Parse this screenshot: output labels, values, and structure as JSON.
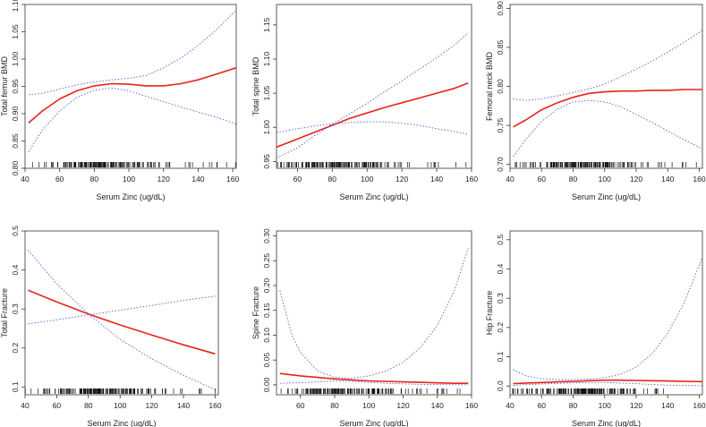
{
  "colors": {
    "fit_line": "#e8231b",
    "ci_band": "#5a5ad8",
    "axis": "#333333",
    "rug": "#111111"
  },
  "icons": [],
  "chart_data": [
    {
      "type": "line",
      "ylabel": "Total femur BMD",
      "xlabel": "Serum Zinc (ug/dL)",
      "xlim": [
        40,
        162
      ],
      "ylim": [
        0.8,
        1.1
      ],
      "xticks": [
        "40",
        "60",
        "80",
        "100",
        "120",
        "140",
        "160"
      ],
      "yticks": [
        "0.80",
        "0.85",
        "0.90",
        "0.95",
        "1.00",
        "1.05",
        "1.10"
      ],
      "x": [
        42,
        50,
        60,
        70,
        80,
        90,
        100,
        110,
        120,
        130,
        140,
        150,
        162
      ],
      "series": [
        {
          "role": "fit",
          "values": [
            0.883,
            0.905,
            0.927,
            0.942,
            0.951,
            0.955,
            0.954,
            0.951,
            0.951,
            0.955,
            0.962,
            0.972,
            0.984
          ]
        },
        {
          "role": "upper",
          "values": [
            0.935,
            0.937,
            0.945,
            0.953,
            0.958,
            0.962,
            0.965,
            0.97,
            0.984,
            1.002,
            1.025,
            1.052,
            1.09
          ]
        },
        {
          "role": "lower",
          "values": [
            0.83,
            0.87,
            0.905,
            0.93,
            0.943,
            0.947,
            0.942,
            0.932,
            0.922,
            0.912,
            0.903,
            0.894,
            0.881
          ]
        }
      ],
      "rug_x_range": [
        40,
        162
      ]
    },
    {
      "type": "line",
      "ylabel": "Total spine BMD",
      "xlabel": "Serum Zinc (ug/dL)",
      "xlim": [
        48,
        160
      ],
      "ylim": [
        0.94,
        1.18
      ],
      "xticks": [
        "60",
        "80",
        "100",
        "120",
        "140",
        "160"
      ],
      "yticks": [
        "0.95",
        "1.00",
        "1.05",
        "1.10",
        "1.15"
      ],
      "x": [
        48,
        60,
        70,
        80,
        90,
        100,
        110,
        120,
        130,
        140,
        150,
        158
      ],
      "series": [
        {
          "role": "fit",
          "values": [
            0.971,
            0.983,
            0.993,
            1.003,
            1.013,
            1.021,
            1.029,
            1.036,
            1.043,
            1.05,
            1.057,
            1.065
          ]
        },
        {
          "role": "upper",
          "values": [
            0.955,
            0.97,
            0.988,
            1.005,
            1.02,
            1.035,
            1.052,
            1.068,
            1.085,
            1.102,
            1.12,
            1.138
          ]
        },
        {
          "role": "lower",
          "values": [
            0.992,
            0.998,
            1.002,
            1.005,
            1.007,
            1.008,
            1.008,
            1.006,
            1.003,
            0.998,
            0.994,
            0.99
          ]
        }
      ],
      "rug_x_range": [
        48,
        158
      ]
    },
    {
      "type": "line",
      "ylabel": "Femoral neck BMD",
      "xlabel": "Serum Zinc (ug/dL)",
      "xlim": [
        40,
        162
      ],
      "ylim": [
        0.695,
        0.905
      ],
      "xticks": [
        "40",
        "60",
        "80",
        "100",
        "120",
        "140",
        "160"
      ],
      "yticks": [
        "0.70",
        "0.75",
        "0.80",
        "0.85",
        "0.90"
      ],
      "x": [
        42,
        50,
        60,
        70,
        80,
        90,
        100,
        110,
        120,
        130,
        140,
        150,
        162
      ],
      "series": [
        {
          "role": "fit",
          "values": [
            0.748,
            0.757,
            0.77,
            0.779,
            0.786,
            0.791,
            0.793,
            0.794,
            0.794,
            0.795,
            0.795,
            0.796,
            0.796
          ]
        },
        {
          "role": "upper",
          "values": [
            0.784,
            0.782,
            0.784,
            0.788,
            0.792,
            0.797,
            0.803,
            0.812,
            0.822,
            0.832,
            0.844,
            0.856,
            0.872
          ]
        },
        {
          "role": "lower",
          "values": [
            0.71,
            0.732,
            0.755,
            0.771,
            0.78,
            0.782,
            0.78,
            0.774,
            0.764,
            0.754,
            0.743,
            0.732,
            0.72
          ]
        }
      ],
      "rug_x_range": [
        40,
        162
      ]
    },
    {
      "type": "line",
      "ylabel": "Total Fracture",
      "xlabel": "Serum Zinc (ug/dL)",
      "xlim": [
        40,
        162
      ],
      "ylim": [
        0.08,
        0.5
      ],
      "xticks": [
        "40",
        "60",
        "80",
        "100",
        "120",
        "140",
        "160"
      ],
      "yticks": [
        "0.1",
        "0.2",
        "0.3",
        "0.4",
        "0.5"
      ],
      "x": [
        42,
        60,
        80,
        100,
        120,
        140,
        160
      ],
      "series": [
        {
          "role": "fit",
          "values": [
            0.348,
            0.318,
            0.287,
            0.259,
            0.233,
            0.208,
            0.185
          ]
        },
        {
          "role": "upper",
          "values": [
            0.45,
            0.365,
            0.287,
            0.222,
            0.172,
            0.13,
            0.093
          ]
        },
        {
          "role": "lower",
          "values": [
            0.262,
            0.272,
            0.285,
            0.297,
            0.309,
            0.322,
            0.333
          ]
        }
      ],
      "rug_x_range": [
        40,
        162
      ]
    },
    {
      "type": "line",
      "ylabel": "Spine Fracture",
      "xlabel": "Serum Zinc (ug/dL)",
      "xlim": [
        46,
        160
      ],
      "ylim": [
        -0.02,
        0.31
      ],
      "xticks": [
        "60",
        "80",
        "100",
        "120",
        "140",
        "160"
      ],
      "yticks": [
        "0.00",
        "0.05",
        "0.10",
        "0.15",
        "0.20",
        "0.25",
        "0.30"
      ],
      "x": [
        48,
        55,
        60,
        70,
        80,
        90,
        100,
        110,
        120,
        130,
        140,
        150,
        158
      ],
      "series": [
        {
          "role": "fit",
          "values": [
            0.023,
            0.02,
            0.018,
            0.015,
            0.012,
            0.01,
            0.008,
            0.007,
            0.006,
            0.005,
            0.004,
            0.003,
            0.003
          ]
        },
        {
          "role": "upper",
          "values": [
            0.19,
            0.1,
            0.065,
            0.028,
            0.015,
            0.013,
            0.018,
            0.028,
            0.045,
            0.075,
            0.12,
            0.19,
            0.275
          ]
        },
        {
          "role": "lower",
          "values": [
            0.003,
            0.004,
            0.004,
            0.006,
            0.008,
            0.007,
            0.005,
            0.003,
            0.002,
            0.001,
            0.0006,
            0.0003,
            0.0002
          ]
        }
      ],
      "rug_x_range": [
        48,
        158
      ]
    },
    {
      "type": "line",
      "ylabel": "Hip Fracture",
      "xlabel": "Serum Zinc (ug/dL)",
      "xlim": [
        40,
        162
      ],
      "ylim": [
        -0.03,
        0.53
      ],
      "xticks": [
        "40",
        "60",
        "80",
        "100",
        "120",
        "140",
        "160"
      ],
      "yticks": [
        "0.0",
        "0.1",
        "0.2",
        "0.3",
        "0.4",
        "0.5"
      ],
      "x": [
        42,
        50,
        60,
        70,
        80,
        90,
        100,
        110,
        120,
        130,
        140,
        150,
        162
      ],
      "series": [
        {
          "role": "fit",
          "values": [
            0.008,
            0.01,
            0.012,
            0.014,
            0.016,
            0.018,
            0.02,
            0.02,
            0.019,
            0.018,
            0.017,
            0.016,
            0.015
          ]
        },
        {
          "role": "upper",
          "values": [
            0.055,
            0.035,
            0.025,
            0.022,
            0.022,
            0.024,
            0.028,
            0.04,
            0.065,
            0.11,
            0.18,
            0.28,
            0.44
          ]
        },
        {
          "role": "lower",
          "values": [
            0.002,
            0.005,
            0.007,
            0.009,
            0.011,
            0.012,
            0.012,
            0.01,
            0.008,
            0.005,
            0.003,
            0.002,
            0.001
          ]
        }
      ],
      "rug_x_range": [
        40,
        162
      ]
    }
  ]
}
